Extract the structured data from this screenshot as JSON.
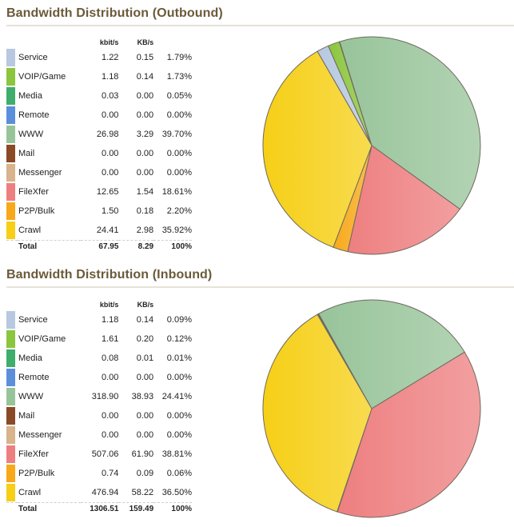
{
  "outbound": {
    "title": "Bandwidth Distribution (Outbound)",
    "headers": {
      "kbits": "kbit/s",
      "kbs": "KB/s"
    },
    "rows": [
      {
        "name": "Service",
        "color": "#b7c8e0",
        "kbits": "1.22",
        "kbs": "0.15",
        "pct": "1.79%"
      },
      {
        "name": "VOIP/Game",
        "color": "#8cc63e",
        "kbits": "1.18",
        "kbs": "0.14",
        "pct": "1.73%"
      },
      {
        "name": "Media",
        "color": "#3fae6c",
        "kbits": "0.03",
        "kbs": "0.00",
        "pct": "0.05%"
      },
      {
        "name": "Remote",
        "color": "#5b8fdc",
        "kbits": "0.00",
        "kbs": "0.00",
        "pct": "0.00%"
      },
      {
        "name": "WWW",
        "color": "#98c49a",
        "kbits": "26.98",
        "kbs": "3.29",
        "pct": "39.70%"
      },
      {
        "name": "Mail",
        "color": "#8a4a26",
        "kbits": "0.00",
        "kbs": "0.00",
        "pct": "0.00%"
      },
      {
        "name": "Messenger",
        "color": "#d7b48c",
        "kbits": "0.00",
        "kbs": "0.00",
        "pct": "0.00%"
      },
      {
        "name": "FileXfer",
        "color": "#ee7f80",
        "kbits": "12.65",
        "kbs": "1.54",
        "pct": "18.61%"
      },
      {
        "name": "P2P/Bulk",
        "color": "#f7a91a",
        "kbits": "1.50",
        "kbs": "0.18",
        "pct": "2.20%"
      },
      {
        "name": "Crawl",
        "color": "#f6cf16",
        "kbits": "24.41",
        "kbs": "2.98",
        "pct": "35.92%"
      }
    ],
    "total": {
      "label": "Total",
      "kbits": "67.95",
      "kbs": "8.29",
      "pct": "100%"
    }
  },
  "inbound": {
    "title": "Bandwidth Distribution (Inbound)",
    "headers": {
      "kbits": "kbit/s",
      "kbs": "KB/s"
    },
    "rows": [
      {
        "name": "Service",
        "color": "#b7c8e0",
        "kbits": "1.18",
        "kbs": "0.14",
        "pct": "0.09%"
      },
      {
        "name": "VOIP/Game",
        "color": "#8cc63e",
        "kbits": "1.61",
        "kbs": "0.20",
        "pct": "0.12%"
      },
      {
        "name": "Media",
        "color": "#3fae6c",
        "kbits": "0.08",
        "kbs": "0.01",
        "pct": "0.01%"
      },
      {
        "name": "Remote",
        "color": "#5b8fdc",
        "kbits": "0.00",
        "kbs": "0.00",
        "pct": "0.00%"
      },
      {
        "name": "WWW",
        "color": "#98c49a",
        "kbits": "318.90",
        "kbs": "38.93",
        "pct": "24.41%"
      },
      {
        "name": "Mail",
        "color": "#8a4a26",
        "kbits": "0.00",
        "kbs": "0.00",
        "pct": "0.00%"
      },
      {
        "name": "Messenger",
        "color": "#d7b48c",
        "kbits": "0.00",
        "kbs": "0.00",
        "pct": "0.00%"
      },
      {
        "name": "FileXfer",
        "color": "#ee7f80",
        "kbits": "507.06",
        "kbs": "61.90",
        "pct": "38.81%"
      },
      {
        "name": "P2P/Bulk",
        "color": "#f7a91a",
        "kbits": "0.74",
        "kbs": "0.09",
        "pct": "0.06%"
      },
      {
        "name": "Crawl",
        "color": "#f6cf16",
        "kbits": "476.94",
        "kbs": "58.22",
        "pct": "36.50%"
      }
    ],
    "total": {
      "label": "Total",
      "kbits": "1306.51",
      "kbs": "159.49",
      "pct": "100%"
    }
  },
  "chart_data": [
    {
      "type": "pie",
      "categories": [
        "Service",
        "VOIP/Game",
        "Media",
        "Remote",
        "WWW",
        "Mail",
        "Messenger",
        "FileXfer",
        "P2P/Bulk",
        "Crawl"
      ],
      "values": [
        1.79,
        1.73,
        0.05,
        0.0,
        39.7,
        0.0,
        0.0,
        18.61,
        2.2,
        35.92
      ],
      "colors": [
        "#b7c8e0",
        "#8cc63e",
        "#3fae6c",
        "#5b8fdc",
        "#98c49a",
        "#8a4a26",
        "#d7b48c",
        "#ee7f80",
        "#f7a91a",
        "#f6cf16"
      ]
    },
    {
      "type": "pie",
      "categories": [
        "Service",
        "VOIP/Game",
        "Media",
        "Remote",
        "WWW",
        "Mail",
        "Messenger",
        "FileXfer",
        "P2P/Bulk",
        "Crawl"
      ],
      "values": [
        0.09,
        0.12,
        0.01,
        0.0,
        24.41,
        0.0,
        0.0,
        38.81,
        0.06,
        36.5
      ],
      "colors": [
        "#b7c8e0",
        "#8cc63e",
        "#3fae6c",
        "#5b8fdc",
        "#98c49a",
        "#8a4a26",
        "#d7b48c",
        "#ee7f80",
        "#f7a91a",
        "#f6cf16"
      ]
    }
  ]
}
